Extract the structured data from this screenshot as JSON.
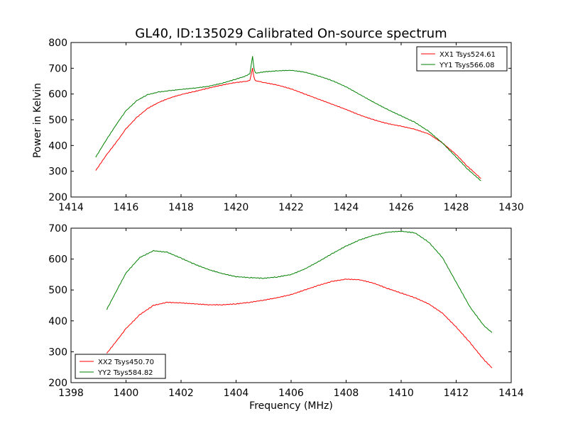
{
  "figure": {
    "title": "GL40, ID:135029 Calibrated On-source spectrum",
    "ylabel": "Power in Kelvin",
    "xlabel": "Frequency (MHz)"
  },
  "chart_data": [
    {
      "type": "line",
      "xlim": [
        1414,
        1430
      ],
      "ylim": [
        200,
        800
      ],
      "xticks": [
        1414,
        1416,
        1418,
        1420,
        1422,
        1424,
        1426,
        1428,
        1430
      ],
      "yticks": [
        200,
        300,
        400,
        500,
        600,
        700,
        800
      ],
      "ylabel": "Power in Kelvin",
      "legend_position": "top-right",
      "series": [
        {
          "name": "XX1 Tsys524.61",
          "color": "#ff0000",
          "x": [
            1414.9,
            1415.3,
            1415.7,
            1416.0,
            1416.4,
            1416.8,
            1417.2,
            1417.6,
            1418.0,
            1418.5,
            1419.0,
            1419.5,
            1420.0,
            1420.3,
            1420.5,
            1420.6,
            1420.65,
            1420.7,
            1420.8,
            1421.0,
            1421.5,
            1422.0,
            1422.5,
            1423.0,
            1423.5,
            1424.0,
            1424.5,
            1425.0,
            1425.5,
            1426.0,
            1426.5,
            1427.0,
            1427.5,
            1428.0,
            1428.4,
            1428.9
          ],
          "y": [
            303,
            365,
            420,
            465,
            510,
            545,
            568,
            585,
            598,
            610,
            623,
            635,
            645,
            648,
            652,
            700,
            665,
            652,
            650,
            645,
            635,
            620,
            600,
            580,
            560,
            540,
            518,
            500,
            485,
            475,
            463,
            445,
            410,
            365,
            320,
            272
          ]
        },
        {
          "name": "YY1 Tsys566.08",
          "color": "#008000",
          "x": [
            1414.9,
            1415.3,
            1415.7,
            1416.0,
            1416.4,
            1416.8,
            1417.2,
            1417.6,
            1418.0,
            1418.5,
            1419.0,
            1419.5,
            1420.0,
            1420.3,
            1420.5,
            1420.6,
            1420.65,
            1420.7,
            1420.8,
            1421.0,
            1421.5,
            1422.0,
            1422.5,
            1423.0,
            1423.5,
            1424.0,
            1424.5,
            1425.0,
            1425.5,
            1426.0,
            1426.5,
            1427.0,
            1427.5,
            1428.0,
            1428.4,
            1428.9
          ],
          "y": [
            355,
            425,
            490,
            535,
            575,
            598,
            608,
            613,
            618,
            623,
            630,
            642,
            658,
            668,
            678,
            746,
            700,
            682,
            682,
            686,
            690,
            692,
            685,
            670,
            652,
            628,
            598,
            568,
            540,
            515,
            490,
            455,
            410,
            355,
            310,
            263
          ]
        }
      ]
    },
    {
      "type": "line",
      "xlim": [
        1398,
        1414
      ],
      "ylim": [
        200,
        700
      ],
      "xticks": [
        1398,
        1400,
        1402,
        1404,
        1406,
        1408,
        1410,
        1412,
        1414
      ],
      "yticks": [
        200,
        300,
        400,
        500,
        600,
        700
      ],
      "xlabel": "Frequency (MHz)",
      "legend_position": "bottom-left",
      "series": [
        {
          "name": "XX2 Tsys450.70",
          "color": "#ff0000",
          "x": [
            1399.3,
            1399.7,
            1400.0,
            1400.5,
            1401.0,
            1401.5,
            1402.0,
            1402.5,
            1403.0,
            1403.5,
            1404.0,
            1404.5,
            1405.0,
            1405.5,
            1406.0,
            1406.5,
            1407.0,
            1407.5,
            1408.0,
            1408.5,
            1409.0,
            1409.5,
            1410.0,
            1410.5,
            1411.0,
            1411.5,
            1412.0,
            1412.5,
            1413.0,
            1413.3
          ],
          "y": [
            295,
            340,
            375,
            420,
            450,
            460,
            458,
            455,
            452,
            452,
            455,
            460,
            467,
            475,
            485,
            500,
            515,
            528,
            535,
            533,
            522,
            505,
            490,
            475,
            455,
            425,
            380,
            330,
            275,
            248
          ]
        },
        {
          "name": "YY2 Tsys584.82",
          "color": "#008000",
          "x": [
            1399.3,
            1399.7,
            1400.0,
            1400.5,
            1401.0,
            1401.5,
            1402.0,
            1402.5,
            1403.0,
            1403.5,
            1404.0,
            1404.5,
            1405.0,
            1405.5,
            1406.0,
            1406.5,
            1407.0,
            1407.5,
            1408.0,
            1408.5,
            1409.0,
            1409.5,
            1410.0,
            1410.5,
            1411.0,
            1411.5,
            1412.0,
            1412.5,
            1413.0,
            1413.3
          ],
          "y": [
            437,
            505,
            555,
            605,
            627,
            622,
            603,
            583,
            566,
            553,
            543,
            540,
            538,
            542,
            550,
            568,
            592,
            618,
            642,
            662,
            677,
            687,
            690,
            685,
            655,
            605,
            525,
            445,
            385,
            362
          ]
        }
      ]
    }
  ]
}
